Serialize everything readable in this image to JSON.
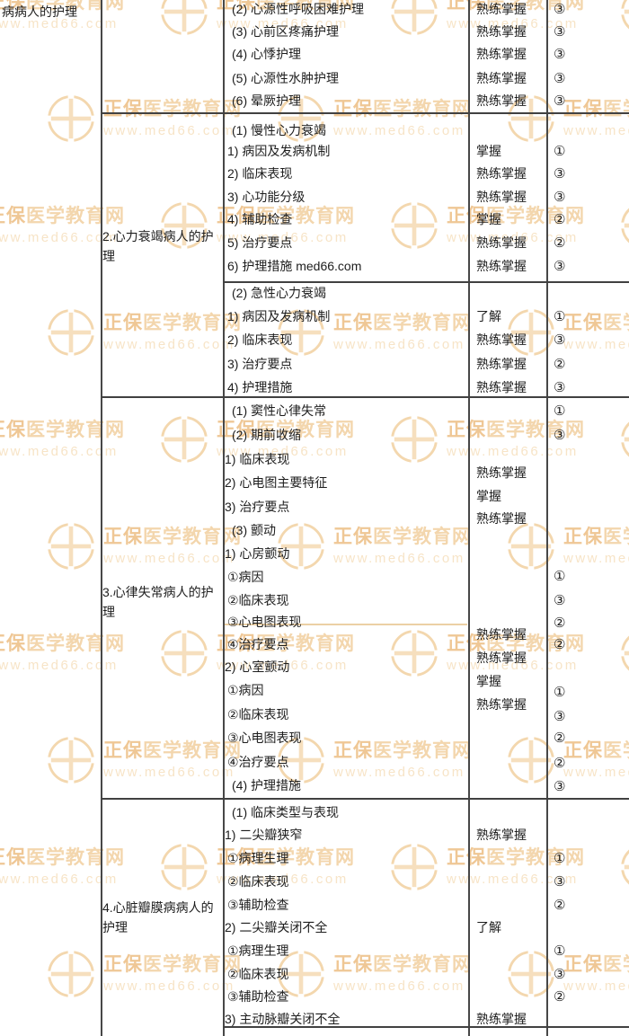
{
  "watermark": {
    "brand_prefix": "正保",
    "brand_suffix": "医学教育网",
    "url": "www.med66.com",
    "logo_color": "#f3d7ae",
    "brand_color": "#efc795",
    "url_color": "#f7e4c7"
  },
  "table": {
    "chapter_label": "病病人的护理",
    "sections": [
      {
        "label": "",
        "rows": [
          {
            "item": "(2) 心源性呼吸困难护理",
            "mastery": "熟练掌握",
            "level": "③"
          },
          {
            "item": "(3) 心前区疼痛护理",
            "mastery": "熟练掌握",
            "level": "③"
          },
          {
            "item": "(4) 心悸护理",
            "mastery": "熟练掌握",
            "level": "③"
          },
          {
            "item": "(5) 心源性水肿护理",
            "mastery": "熟练掌握",
            "level": "③"
          },
          {
            "item": "(6) 晕厥护理",
            "mastery": "熟练掌握",
            "level": "③"
          }
        ]
      },
      {
        "label": "2.心力衰竭病人的护理",
        "groups": [
          {
            "header": "(1) 慢性心力衰竭",
            "rows": [
              {
                "item": "1) 病因及发病机制",
                "mastery": "掌握",
                "level": "①"
              },
              {
                "item": "2) 临床表现",
                "mastery": "熟练掌握",
                "level": "③"
              },
              {
                "item": "3) 心功能分级",
                "mastery": "熟练掌握",
                "level": "③"
              },
              {
                "item": "4) 辅助检查",
                "mastery": "掌握",
                "level": "②"
              },
              {
                "item": "5) 治疗要点",
                "mastery": "熟练掌握",
                "level": "②"
              },
              {
                "item": "6) 护理措施 med66.com",
                "mastery": "熟练掌握",
                "level": "③"
              }
            ]
          },
          {
            "header": "(2) 急性心力衰竭",
            "rows": [
              {
                "item": "1) 病因及发病机制",
                "mastery": "了解",
                "level": "①"
              },
              {
                "item": "2) 临床表现",
                "mastery": "熟练掌握",
                "level": "③"
              },
              {
                "item": "3) 治疗要点",
                "mastery": "熟练掌握",
                "level": "②"
              },
              {
                "item": "4) 护理措施",
                "mastery": "熟练掌握",
                "level": "③"
              }
            ]
          }
        ]
      },
      {
        "label": "3.心律失常病人的护理",
        "items": [
          "(1) 窦性心律失常",
          "(2) 期前收缩",
          "1) 临床表现",
          "2) 心电图主要特征",
          "3) 治疗要点",
          "(3) 颤动",
          "1) 心房颤动",
          "①病因",
          "②临床表现",
          "③心电图表现",
          "④治疗要点",
          "2) 心室颤动",
          "①病因",
          "②临床表现",
          "③心电图表现",
          "④治疗要点",
          "(4) 护理措施"
        ],
        "mastery": [
          "熟练掌握",
          "掌握",
          "熟练掌握",
          "熟练掌握",
          "熟练掌握",
          "掌握",
          "熟练掌握"
        ],
        "levels": [
          "①",
          "③",
          "①",
          "③",
          "②",
          "②",
          "①",
          "③",
          "②",
          "②",
          "③"
        ]
      },
      {
        "label": "4.心脏瓣膜病病人的护理",
        "items": [
          "(1) 临床类型与表现",
          "1) 二尖瓣狭窄",
          "①病理生理",
          "②临床表现",
          "③辅助检查",
          "2) 二尖瓣关闭不全",
          "①病理生理",
          "②临床表现",
          "③辅助检查",
          "3) 主动脉瓣关闭不全"
        ],
        "mastery": [
          "熟练掌握",
          "了解",
          "熟练掌握"
        ],
        "levels": [
          "①",
          "③",
          "②",
          "①",
          "③",
          "②"
        ]
      }
    ]
  }
}
